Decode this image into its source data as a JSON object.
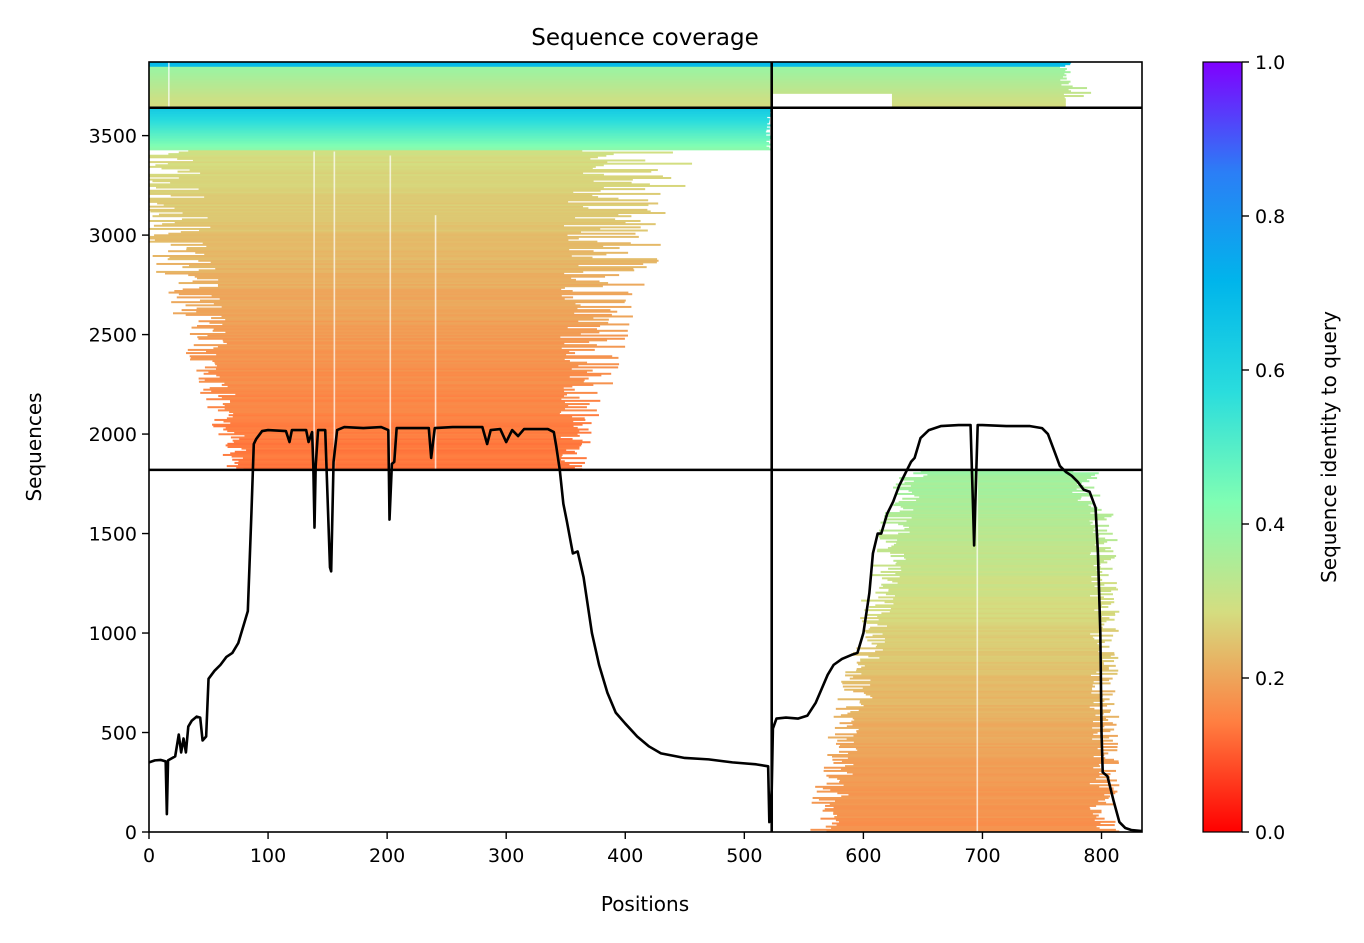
{
  "chart_data": {
    "type": "heatmap",
    "title": "Sequence coverage",
    "xlabel": "Positions",
    "ylabel": "Sequences",
    "xlim": [
      0,
      834
    ],
    "ylim": [
      0,
      3870
    ],
    "xticks": [
      0,
      100,
      200,
      300,
      400,
      500,
      600,
      700,
      800
    ],
    "yticks": [
      0,
      500,
      1000,
      1500,
      2000,
      2500,
      3000,
      3500
    ],
    "grid": false,
    "chain_boundary_x": 523,
    "group_boundaries_y": [
      1820,
      3640
    ],
    "colorbar": {
      "label": "Sequence identity to query",
      "min": 0.0,
      "max": 1.0,
      "ticks": [
        0.0,
        0.2,
        0.4,
        0.6,
        0.8,
        1.0
      ],
      "colormap": "rainbow_r",
      "stops": [
        "#ff0000",
        "#ff7f41",
        "#d4dd80",
        "#80feb3",
        "#2adddd",
        "#00b5eb",
        "#2b7ef6",
        "#8000ff"
      ]
    },
    "coverage_line": {
      "color": "#000000",
      "points": [
        [
          0,
          350
        ],
        [
          5,
          360
        ],
        [
          10,
          362
        ],
        [
          14,
          355
        ],
        [
          15,
          90
        ],
        [
          16,
          360
        ],
        [
          22,
          380
        ],
        [
          25,
          490
        ],
        [
          27,
          400
        ],
        [
          29,
          470
        ],
        [
          31,
          400
        ],
        [
          33,
          530
        ],
        [
          36,
          560
        ],
        [
          40,
          580
        ],
        [
          43,
          575
        ],
        [
          45,
          460
        ],
        [
          48,
          480
        ],
        [
          50,
          770
        ],
        [
          55,
          810
        ],
        [
          60,
          840
        ],
        [
          65,
          880
        ],
        [
          70,
          900
        ],
        [
          75,
          950
        ],
        [
          80,
          1050
        ],
        [
          83,
          1110
        ],
        [
          86,
          1600
        ],
        [
          88,
          1950
        ],
        [
          90,
          1975
        ],
        [
          95,
          2015
        ],
        [
          100,
          2020
        ],
        [
          115,
          2015
        ],
        [
          118,
          1960
        ],
        [
          120,
          2020
        ],
        [
          132,
          2020
        ],
        [
          134,
          1960
        ],
        [
          137,
          2010
        ],
        [
          138,
          1840
        ],
        [
          139,
          1530
        ],
        [
          140,
          1840
        ],
        [
          142,
          2020
        ],
        [
          148,
          2020
        ],
        [
          152,
          1330
        ],
        [
          153,
          1310
        ],
        [
          155,
          1860
        ],
        [
          158,
          2020
        ],
        [
          164,
          2035
        ],
        [
          180,
          2030
        ],
        [
          195,
          2035
        ],
        [
          201,
          2020
        ],
        [
          202,
          1570
        ],
        [
          204,
          1850
        ],
        [
          206,
          1860
        ],
        [
          208,
          2030
        ],
        [
          235,
          2030
        ],
        [
          237,
          1880
        ],
        [
          240,
          2030
        ],
        [
          255,
          2035
        ],
        [
          280,
          2035
        ],
        [
          284,
          1950
        ],
        [
          287,
          2020
        ],
        [
          295,
          2025
        ],
        [
          300,
          1960
        ],
        [
          305,
          2020
        ],
        [
          310,
          1990
        ],
        [
          315,
          2025
        ],
        [
          335,
          2025
        ],
        [
          340,
          2010
        ],
        [
          342,
          1940
        ],
        [
          345,
          1820
        ],
        [
          348,
          1650
        ],
        [
          351,
          1560
        ],
        [
          356,
          1400
        ],
        [
          360,
          1410
        ],
        [
          365,
          1280
        ],
        [
          372,
          1000
        ],
        [
          378,
          840
        ],
        [
          385,
          700
        ],
        [
          392,
          600
        ],
        [
          400,
          545
        ],
        [
          410,
          480
        ],
        [
          420,
          430
        ],
        [
          430,
          395
        ],
        [
          450,
          372
        ],
        [
          470,
          365
        ],
        [
          490,
          350
        ],
        [
          510,
          340
        ],
        [
          520,
          330
        ],
        [
          521,
          50
        ],
        [
          523,
          210
        ],
        [
          524,
          520
        ],
        [
          527,
          570
        ],
        [
          535,
          575
        ],
        [
          545,
          570
        ],
        [
          553,
          585
        ],
        [
          560,
          650
        ],
        [
          565,
          720
        ],
        [
          570,
          790
        ],
        [
          575,
          840
        ],
        [
          582,
          870
        ],
        [
          590,
          890
        ],
        [
          595,
          900
        ],
        [
          598,
          960
        ],
        [
          600,
          1000
        ],
        [
          605,
          1200
        ],
        [
          608,
          1400
        ],
        [
          612,
          1500
        ],
        [
          615,
          1500
        ],
        [
          620,
          1600
        ],
        [
          625,
          1660
        ],
        [
          630,
          1740
        ],
        [
          635,
          1800
        ],
        [
          640,
          1860
        ],
        [
          643,
          1880
        ],
        [
          648,
          1980
        ],
        [
          655,
          2020
        ],
        [
          665,
          2040
        ],
        [
          680,
          2045
        ],
        [
          690,
          2045
        ],
        [
          692,
          1650
        ],
        [
          693,
          1440
        ],
        [
          694,
          1650
        ],
        [
          696,
          2045
        ],
        [
          700,
          2045
        ],
        [
          720,
          2040
        ],
        [
          740,
          2040
        ],
        [
          750,
          2030
        ],
        [
          755,
          2000
        ],
        [
          760,
          1920
        ],
        [
          765,
          1840
        ],
        [
          770,
          1810
        ],
        [
          775,
          1790
        ],
        [
          780,
          1760
        ],
        [
          785,
          1720
        ],
        [
          790,
          1710
        ],
        [
          795,
          1630
        ],
        [
          797,
          1400
        ],
        [
          799,
          1000
        ],
        [
          800,
          500
        ],
        [
          801,
          300
        ],
        [
          805,
          280
        ],
        [
          810,
          160
        ],
        [
          815,
          50
        ],
        [
          820,
          20
        ],
        [
          825,
          10
        ],
        [
          834,
          5
        ]
      ]
    }
  }
}
